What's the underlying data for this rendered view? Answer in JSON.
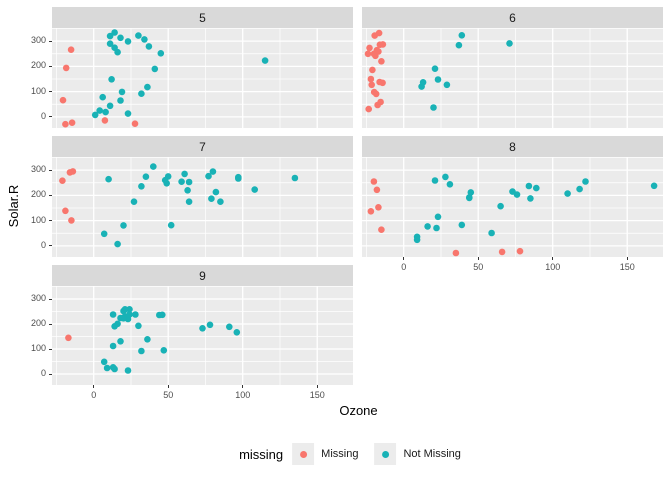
{
  "chart_data": {
    "type": "scatter",
    "title": "",
    "xlabel": "Ozone",
    "ylabel": "Solar.R",
    "facet_labels": [
      "5",
      "6",
      "7",
      "8",
      "9"
    ],
    "grid": true,
    "x_axis": {
      "tick_labels": [
        "0",
        "50",
        "100",
        "150"
      ],
      "tick_values": [
        0,
        50,
        100,
        150
      ],
      "minor_values": [
        -25,
        25,
        75,
        125,
        175
      ],
      "domain": [
        -28,
        174
      ]
    },
    "y_axis": {
      "tick_labels": [
        "0",
        "100",
        "200",
        "300"
      ],
      "tick_values": [
        0,
        100,
        200,
        300
      ],
      "minor_values": [
        50,
        150,
        250,
        350
      ],
      "domain": [
        -44,
        352
      ]
    },
    "legend": {
      "title": "missing",
      "position": "bottom",
      "items": [
        {
          "label": "Missing",
          "color": "#F8766D"
        },
        {
          "label": "Not Missing",
          "color": "#19B2B6"
        }
      ]
    },
    "colors": {
      "missing": "#F8766D",
      "not_missing": "#19B2B6",
      "panel_bg": "#EBEBEB",
      "strip_bg": "#D9D9D9",
      "grid": "#FFFFFF",
      "tick_text": "#4D4D4D",
      "strip_text": "#1A1A1A",
      "axis_title_text": "#000000",
      "legend_key_bg": "#ECECEC"
    },
    "point_format": [
      "ozone",
      "solar_r",
      "is_missing"
    ],
    "facets": [
      {
        "label": "5",
        "row": 0,
        "col": 0,
        "show_y_axis": true,
        "show_x_axis": false,
        "points": [
          [
            41,
            190,
            0
          ],
          [
            36,
            118,
            0
          ],
          [
            12,
            149,
            0
          ],
          [
            18,
            313,
            0
          ],
          [
            -19,
            -29,
            1
          ],
          [
            27.7,
            -27,
            1
          ],
          [
            23,
            299,
            0
          ],
          [
            19,
            99,
            0
          ],
          [
            8,
            19,
            0
          ],
          [
            -18.5,
            194,
            1
          ],
          [
            7.5,
            -14,
            1
          ],
          [
            16,
            256,
            0
          ],
          [
            11,
            290,
            0
          ],
          [
            14,
            274,
            0
          ],
          [
            18,
            65,
            0
          ],
          [
            14,
            334,
            0
          ],
          [
            34,
            307,
            0
          ],
          [
            6,
            78,
            0
          ],
          [
            30,
            322,
            0
          ],
          [
            11,
            44,
            0
          ],
          [
            1,
            8,
            0
          ],
          [
            11,
            320,
            0
          ],
          [
            4,
            25,
            0
          ],
          [
            32,
            92,
            0
          ],
          [
            -20.6,
            66,
            1
          ],
          [
            -15.2,
            266,
            1
          ],
          [
            -14.5,
            -23,
            1
          ],
          [
            23,
            13,
            0
          ],
          [
            45,
            252,
            0
          ],
          [
            115,
            223,
            0
          ],
          [
            37,
            279,
            0
          ]
        ]
      },
      {
        "label": "6",
        "row": 0,
        "col": 1,
        "show_y_axis": false,
        "show_x_axis": false,
        "points": [
          [
            -16,
            286,
            1
          ],
          [
            -14,
            287,
            1
          ],
          [
            -19,
            242,
            1
          ],
          [
            -21,
            186,
            1
          ],
          [
            -15,
            220,
            1
          ],
          [
            -18,
            264,
            1
          ],
          [
            29,
            127,
            0
          ],
          [
            -23,
            273,
            1
          ],
          [
            71,
            291,
            0
          ],
          [
            39,
            323,
            0
          ],
          [
            -17,
            259,
            1
          ],
          [
            -20,
            250,
            1
          ],
          [
            23,
            148,
            0
          ],
          [
            -16.5,
            332,
            1
          ],
          [
            -19.5,
            322,
            1
          ],
          [
            21,
            191,
            0
          ],
          [
            37,
            284,
            0
          ],
          [
            20,
            37,
            0
          ],
          [
            12,
            120,
            0
          ],
          [
            13,
            137,
            0
          ],
          [
            -22,
            150,
            1
          ],
          [
            -15.5,
            59,
            1
          ],
          [
            -18.5,
            91,
            1
          ],
          [
            -24,
            250,
            1
          ],
          [
            -14.2,
            135,
            1
          ],
          [
            -21.5,
            127,
            1
          ],
          [
            -17.5,
            47,
            1
          ],
          [
            -19.8,
            98,
            1
          ],
          [
            -23.5,
            31,
            1
          ],
          [
            -16.2,
            138,
            1
          ]
        ]
      },
      {
        "label": "7",
        "row": 1,
        "col": 0,
        "show_y_axis": true,
        "show_x_axis": false,
        "points": [
          [
            135,
            269,
            0
          ],
          [
            49,
            248,
            0
          ],
          [
            32,
            236,
            0
          ],
          [
            -15,
            101,
            1
          ],
          [
            64,
            175,
            0
          ],
          [
            40,
            314,
            0
          ],
          [
            77,
            276,
            0
          ],
          [
            97,
            267,
            0
          ],
          [
            97,
            272,
            0
          ],
          [
            85,
            175,
            0
          ],
          [
            -19,
            139,
            1
          ],
          [
            10,
            264,
            0
          ],
          [
            27,
            175,
            0
          ],
          [
            -16,
            291,
            1
          ],
          [
            7,
            48,
            0
          ],
          [
            48,
            260,
            0
          ],
          [
            35,
            274,
            0
          ],
          [
            61,
            285,
            0
          ],
          [
            79,
            187,
            0
          ],
          [
            63,
            220,
            0
          ],
          [
            16,
            7,
            0
          ],
          [
            -21,
            258,
            1
          ],
          [
            -14,
            295,
            1
          ],
          [
            80,
            294,
            0
          ],
          [
            108,
            223,
            0
          ],
          [
            20,
            81,
            0
          ],
          [
            52,
            82,
            0
          ],
          [
            82,
            213,
            0
          ],
          [
            50,
            275,
            0
          ],
          [
            64,
            253,
            0
          ],
          [
            59,
            254,
            0
          ]
        ]
      },
      {
        "label": "8",
        "row": 1,
        "col": 1,
        "show_y_axis": false,
        "show_x_axis": true,
        "points": [
          [
            39,
            83,
            0
          ],
          [
            9,
            24,
            0
          ],
          [
            16,
            77,
            0
          ],
          [
            78,
            -21,
            1
          ],
          [
            35,
            -28,
            1
          ],
          [
            66,
            -24,
            1
          ],
          [
            122,
            255,
            0
          ],
          [
            89,
            229,
            0
          ],
          [
            110,
            207,
            0
          ],
          [
            -18,
            222,
            1
          ],
          [
            -22,
            137,
            1
          ],
          [
            44,
            192,
            0
          ],
          [
            28,
            273,
            0
          ],
          [
            65,
            157,
            0
          ],
          [
            -15,
            64,
            1
          ],
          [
            22,
            71,
            0
          ],
          [
            59,
            51,
            0
          ],
          [
            23,
            115,
            0
          ],
          [
            31,
            244,
            0
          ],
          [
            44,
            190,
            0
          ],
          [
            21,
            259,
            0
          ],
          [
            9,
            36,
            0
          ],
          [
            -20,
            255,
            1
          ],
          [
            45,
            212,
            0
          ],
          [
            168,
            238,
            0
          ],
          [
            73,
            215,
            0
          ],
          [
            -17,
            153,
            1
          ],
          [
            76,
            203,
            0
          ],
          [
            118,
            225,
            0
          ],
          [
            84,
            237,
            0
          ],
          [
            85,
            188,
            0
          ]
        ]
      },
      {
        "label": "9",
        "row": 2,
        "col": 0,
        "show_y_axis": true,
        "show_x_axis": true,
        "points": [
          [
            96,
            167,
            0
          ],
          [
            78,
            197,
            0
          ],
          [
            73,
            183,
            0
          ],
          [
            91,
            189,
            0
          ],
          [
            47,
            95,
            0
          ],
          [
            32,
            92,
            0
          ],
          [
            20,
            252,
            0
          ],
          [
            23,
            220,
            0
          ],
          [
            21,
            230,
            0
          ],
          [
            24,
            259,
            0
          ],
          [
            44,
            236,
            0
          ],
          [
            21,
            259,
            0
          ],
          [
            28,
            238,
            0
          ],
          [
            9,
            24,
            0
          ],
          [
            13,
            112,
            0
          ],
          [
            46,
            237,
            0
          ],
          [
            18,
            224,
            0
          ],
          [
            13,
            27,
            0
          ],
          [
            24,
            238,
            0
          ],
          [
            16,
            201,
            0
          ],
          [
            13,
            238,
            0
          ],
          [
            23,
            14,
            0
          ],
          [
            36,
            139,
            0
          ],
          [
            7,
            49,
            0
          ],
          [
            14,
            20,
            0
          ],
          [
            30,
            193,
            0
          ],
          [
            -17,
            145,
            1
          ],
          [
            14,
            191,
            0
          ],
          [
            18,
            131,
            0
          ],
          [
            20,
            223,
            0
          ]
        ]
      }
    ]
  }
}
